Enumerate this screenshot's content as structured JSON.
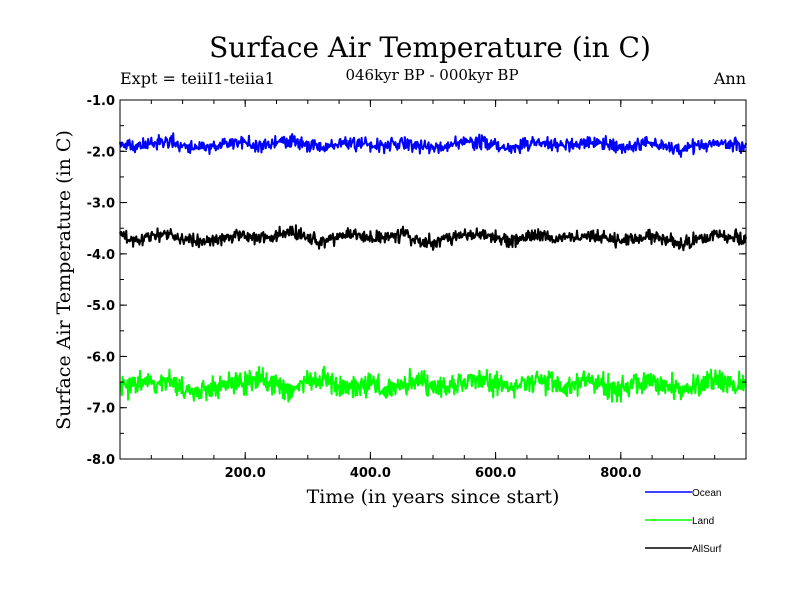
{
  "chart_data": {
    "type": "line",
    "title": "Surface Air Temperature (in C)",
    "subtitle": "046kyr BP - 000kyr BP",
    "left_note": "Expt = teiiI1-teiia1",
    "right_note": "Ann",
    "xlabel": "Time (in years since start)",
    "ylabel": "Surface Air Temperature (in C)",
    "xlim": [
      0,
      1000
    ],
    "ylim": [
      -8.0,
      -1.0
    ],
    "x_ticks": [
      200,
      400,
      600,
      800
    ],
    "x_tick_labels": [
      "200.0",
      "400.0",
      "600.0",
      "800.0"
    ],
    "y_ticks": [
      -1,
      -2,
      -3,
      -4,
      -5,
      -6,
      -7,
      -8
    ],
    "y_tick_labels": [
      "-1.0",
      "-2.0",
      "-3.0",
      "-4.0",
      "-5.0",
      "-6.0",
      "-7.0",
      "-8.0"
    ],
    "grid": false,
    "legend_position": "bottom-right",
    "series": [
      {
        "name": "Ocean",
        "color": "#0000ff",
        "x": [
          0,
          25,
          50,
          75,
          100,
          125,
          150,
          175,
          200,
          225,
          250,
          275,
          300,
          325,
          350,
          375,
          400,
          425,
          450,
          475,
          500,
          525,
          550,
          575,
          600,
          625,
          650,
          675,
          700,
          725,
          750,
          775,
          800,
          825,
          850,
          875,
          900,
          925,
          950,
          975,
          1000
        ],
        "values": [
          -1.86,
          -1.92,
          -1.84,
          -1.8,
          -1.88,
          -1.95,
          -1.9,
          -1.85,
          -1.82,
          -1.9,
          -1.84,
          -1.78,
          -1.88,
          -1.93,
          -1.86,
          -1.82,
          -1.9,
          -1.87,
          -1.83,
          -1.91,
          -1.95,
          -1.88,
          -1.84,
          -1.8,
          -1.89,
          -1.92,
          -1.86,
          -1.83,
          -1.9,
          -1.88,
          -1.82,
          -1.86,
          -1.93,
          -1.89,
          -1.85,
          -1.91,
          -1.97,
          -1.88,
          -1.84,
          -1.86,
          -1.9
        ]
      },
      {
        "name": "Land",
        "color": "#00ff00",
        "x": [
          0,
          25,
          50,
          75,
          100,
          125,
          150,
          175,
          200,
          225,
          250,
          275,
          300,
          325,
          350,
          375,
          400,
          425,
          450,
          475,
          500,
          525,
          550,
          575,
          600,
          625,
          650,
          675,
          700,
          725,
          750,
          775,
          800,
          825,
          850,
          875,
          900,
          925,
          950,
          975,
          1000
        ],
        "values": [
          -6.6,
          -6.55,
          -6.45,
          -6.5,
          -6.62,
          -6.7,
          -6.58,
          -6.48,
          -6.52,
          -6.45,
          -6.55,
          -6.68,
          -6.5,
          -6.42,
          -6.55,
          -6.6,
          -6.52,
          -6.62,
          -6.58,
          -6.48,
          -6.56,
          -6.66,
          -6.5,
          -6.45,
          -6.55,
          -6.62,
          -6.52,
          -6.46,
          -6.58,
          -6.6,
          -6.5,
          -6.55,
          -6.65,
          -6.52,
          -6.48,
          -6.6,
          -6.7,
          -6.55,
          -6.46,
          -6.52,
          -6.58
        ]
      },
      {
        "name": "AllSurf",
        "color": "#000000",
        "x": [
          0,
          25,
          50,
          75,
          100,
          125,
          150,
          175,
          200,
          225,
          250,
          275,
          300,
          325,
          350,
          375,
          400,
          425,
          450,
          475,
          500,
          525,
          550,
          575,
          600,
          625,
          650,
          675,
          700,
          725,
          750,
          775,
          800,
          825,
          850,
          875,
          900,
          925,
          950,
          975,
          1000
        ],
        "values": [
          -3.68,
          -3.74,
          -3.64,
          -3.6,
          -3.7,
          -3.78,
          -3.72,
          -3.66,
          -3.62,
          -3.7,
          -3.65,
          -3.58,
          -3.7,
          -3.76,
          -3.67,
          -3.63,
          -3.72,
          -3.68,
          -3.64,
          -3.73,
          -3.78,
          -3.7,
          -3.65,
          -3.61,
          -3.71,
          -3.75,
          -3.67,
          -3.63,
          -3.72,
          -3.7,
          -3.63,
          -3.68,
          -3.76,
          -3.71,
          -3.66,
          -3.73,
          -3.82,
          -3.7,
          -3.64,
          -3.67,
          -3.73
        ]
      }
    ]
  }
}
